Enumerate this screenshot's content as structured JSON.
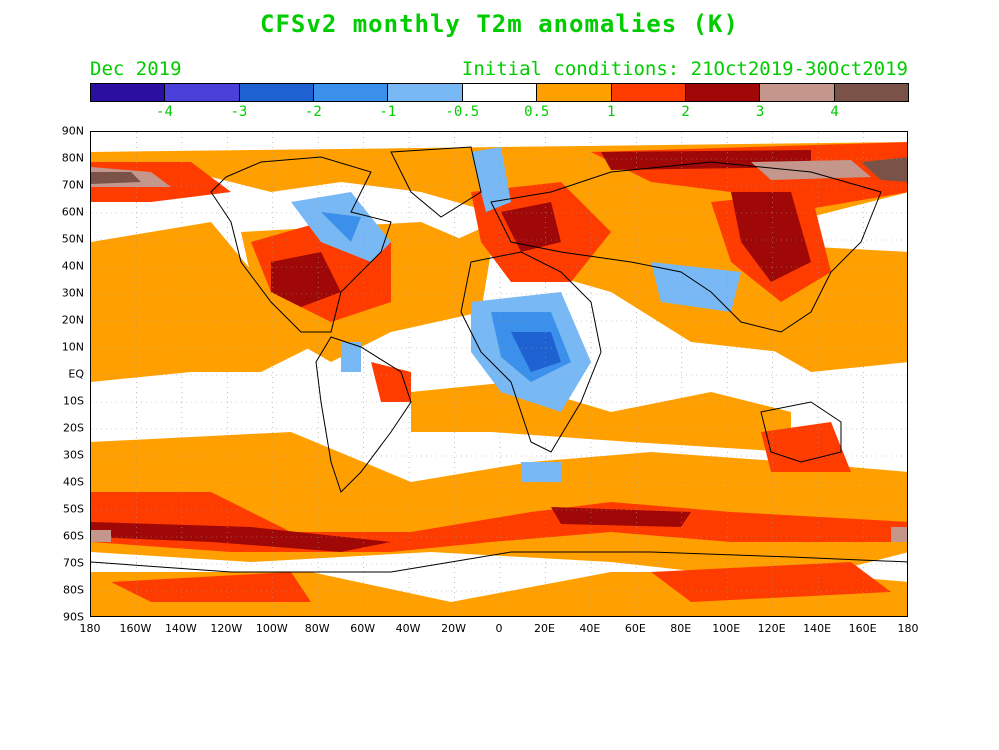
{
  "title": "CFSv2 monthly T2m anomalies (K)",
  "month": "Dec 2019",
  "init": "Initial conditions: 21Oct2019-30Oct2019",
  "legend": {
    "colors": [
      "#2a0fa0",
      "#4a3fd8",
      "#1e62d2",
      "#3a90ea",
      "#78b8f4",
      "#ffffff",
      "#ffa000",
      "#ff3c00",
      "#a00808",
      "#c4968c",
      "#7a5248"
    ],
    "labels": [
      "-4",
      "-3",
      "-2",
      "-1",
      "-0.5",
      "0.5",
      "1",
      "2",
      "3",
      "4"
    ]
  },
  "map": {
    "lat_labels": [
      "90N",
      "80N",
      "70N",
      "60N",
      "50N",
      "40N",
      "30N",
      "20N",
      "10N",
      "EQ",
      "10S",
      "20S",
      "30S",
      "40S",
      "50S",
      "60S",
      "70S",
      "80S",
      "90S"
    ],
    "lon_labels": [
      "180",
      "160W",
      "140W",
      "120W",
      "100W",
      "80W",
      "60W",
      "40W",
      "20W",
      "0",
      "20E",
      "40E",
      "60E",
      "80E",
      "100E",
      "120E",
      "140E",
      "160E",
      "180"
    ]
  }
}
